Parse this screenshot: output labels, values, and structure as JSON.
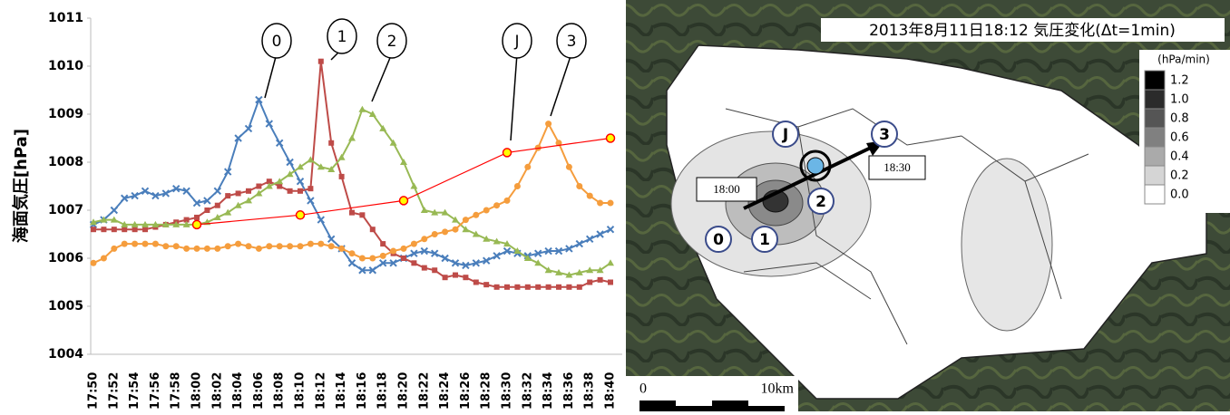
{
  "chart_data": {
    "type": "line",
    "y_label": "海面気圧[hPa]",
    "categories": [
      "17:50",
      null,
      "17:52",
      null,
      "17:54",
      null,
      "17:56",
      null,
      "17:58",
      null,
      "18:00",
      null,
      "18:02",
      null,
      "18:04",
      null,
      "18:06",
      null,
      "18:08",
      null,
      "18:10",
      null,
      "18:12",
      null,
      "18:14",
      null,
      "18:16",
      null,
      "18:18",
      null,
      "18:20",
      null,
      "18:22",
      null,
      "18:24",
      null,
      "18:26",
      null,
      "18:28",
      null,
      "18:30",
      null,
      "18:32",
      null,
      "18:34",
      null,
      "18:36",
      null,
      "18:38",
      null,
      "18:40"
    ],
    "series": [
      {
        "color": "#4a7ebb",
        "marker": "x",
        "values": [
          1006.7,
          1006.8,
          1007.0,
          1007.25,
          1007.3,
          1007.4,
          1007.3,
          1007.35,
          1007.45,
          1007.4,
          1007.15,
          1007.2,
          1007.4,
          1007.8,
          1008.5,
          1008.7,
          1009.3,
          1008.8,
          1008.4,
          1008.0,
          1007.6,
          1007.2,
          1006.8,
          1006.4,
          1006.2,
          1005.9,
          1005.75,
          1005.75,
          1005.9,
          1005.9,
          1006.0,
          1006.1,
          1006.15,
          1006.1,
          1006.0,
          1005.9,
          1005.85,
          1005.9,
          1005.95,
          1006.05,
          1006.15,
          1006.1,
          1006.05,
          1006.1,
          1006.15,
          1006.15,
          1006.2,
          1006.3,
          1006.4,
          1006.5,
          1006.6
        ]
      },
      {
        "color": "#be4b48",
        "marker": "square",
        "values": [
          1006.6,
          1006.6,
          1006.6,
          1006.6,
          1006.6,
          1006.6,
          1006.65,
          1006.7,
          1006.75,
          1006.8,
          1006.85,
          1007.0,
          1007.1,
          1007.3,
          1007.35,
          1007.4,
          1007.5,
          1007.6,
          1007.5,
          1007.4,
          1007.4,
          1007.45,
          1010.1,
          1008.4,
          1007.7,
          1006.95,
          1006.9,
          1006.6,
          1006.3,
          1006.1,
          1006.0,
          1005.9,
          1005.8,
          1005.75,
          1005.6,
          1005.65,
          1005.6,
          1005.5,
          1005.45,
          1005.4,
          1005.4,
          1005.4,
          1005.4,
          1005.4,
          1005.4,
          1005.4,
          1005.4,
          1005.4,
          1005.5,
          1005.55,
          1005.5
        ]
      },
      {
        "color": "#98b954",
        "marker": "triangle",
        "values": [
          1006.75,
          1006.8,
          1006.8,
          1006.7,
          1006.7,
          1006.7,
          1006.7,
          1006.7,
          1006.7,
          1006.7,
          1006.7,
          1006.75,
          1006.85,
          1006.95,
          1007.1,
          1007.2,
          1007.35,
          1007.5,
          1007.6,
          1007.75,
          1007.9,
          1008.05,
          1007.9,
          1007.85,
          1008.1,
          1008.5,
          1009.1,
          1009.0,
          1008.7,
          1008.4,
          1008.0,
          1007.5,
          1007.0,
          1006.95,
          1006.95,
          1006.8,
          1006.6,
          1006.5,
          1006.4,
          1006.35,
          1006.3,
          1006.15,
          1006.0,
          1005.9,
          1005.75,
          1005.7,
          1005.65,
          1005.7,
          1005.75,
          1005.75,
          1005.9
        ]
      },
      {
        "color": "#f59d3d",
        "marker": "circle",
        "values": [
          1005.9,
          1006.0,
          1006.2,
          1006.3,
          1006.3,
          1006.3,
          1006.3,
          1006.25,
          1006.25,
          1006.2,
          1006.2,
          1006.2,
          1006.2,
          1006.25,
          1006.3,
          1006.25,
          1006.2,
          1006.25,
          1006.25,
          1006.25,
          1006.25,
          1006.3,
          1006.3,
          1006.25,
          1006.2,
          1006.1,
          1006.0,
          1006.0,
          1006.05,
          1006.15,
          1006.2,
          1006.3,
          1006.4,
          1006.5,
          1006.55,
          1006.6,
          1006.8,
          1006.9,
          1007.0,
          1007.1,
          1007.2,
          1007.5,
          1007.9,
          1008.3,
          1008.8,
          1008.4,
          1007.9,
          1007.5,
          1007.3,
          1007.15,
          1007.15
        ]
      },
      {
        "color": "#ff0000",
        "marker": "circle",
        "marker_fill": "#ffff00",
        "x": [
          "18:00",
          "18:10",
          "18:20",
          "18:30",
          "18:40"
        ],
        "values": [
          1006.7,
          1006.9,
          1007.2,
          1008.2,
          1008.5
        ]
      }
    ],
    "ylim": [
      1004,
      1011
    ],
    "yticks": [
      1004,
      1005,
      1006,
      1007,
      1008,
      1009,
      1010,
      1011
    ],
    "grid": false,
    "annotations": [
      "0",
      "1",
      "2",
      "J",
      "3"
    ]
  },
  "map": {
    "title": "2013年8月11日18:12 気圧変化(Δt=1min)",
    "legend_title": "(hPa/min)",
    "legend_levels": [
      1.2,
      {
        "value": 1,
        "label": "1.0"
      },
      0.8,
      0.6,
      0.4,
      0.2,
      {
        "value": 0,
        "label": "0.0"
      }
    ],
    "time_labels": [
      "18:00",
      "18:30"
    ],
    "markers": [
      "J",
      "3",
      "0",
      "1",
      "2"
    ],
    "scale_labels": [
      "0",
      "10km"
    ]
  }
}
